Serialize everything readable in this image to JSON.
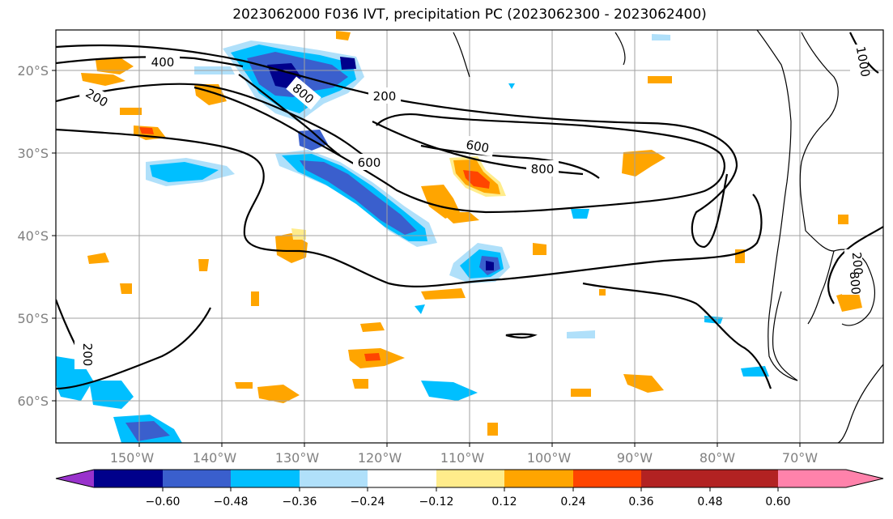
{
  "title": "2023062000 F036 IVT, precipitation PC (2023062300 - 2023062400)",
  "lon_labels": [
    "150°W",
    "140°W",
    "130°W",
    "120°W",
    "110°W",
    "100°W",
    "90°W",
    "80°W",
    "70°W"
  ],
  "lat_labels": [
    "20°S",
    "30°S",
    "40°S",
    "50°S",
    "60°S"
  ],
  "contour_labels": [
    "400",
    "200",
    "800",
    "200",
    "600",
    "600",
    "800",
    "200",
    "1000",
    "200",
    "800"
  ],
  "colorbar": {
    "ticks": [
      "−0.60",
      "−0.48",
      "−0.36",
      "−0.24",
      "−0.12",
      "0.12",
      "0.24",
      "0.36",
      "0.48",
      "0.60"
    ],
    "colors": [
      "#9932cc",
      "#00008b",
      "#3a5fcd",
      "#00bfff",
      "#b0e0fa",
      "#ffffff",
      "#ffec8b",
      "#ffa500",
      "#ff4500",
      "#b22222",
      "#ff82ab"
    ]
  },
  "palette": {
    "dark_blue": "#00008b",
    "mid_blue": "#3a5fcd",
    "sky": "#00bfff",
    "light_blue": "#b0e0fa",
    "light_yellow": "#ffec8b",
    "orange": "#ffa500",
    "red_orange": "#ff4500"
  }
}
